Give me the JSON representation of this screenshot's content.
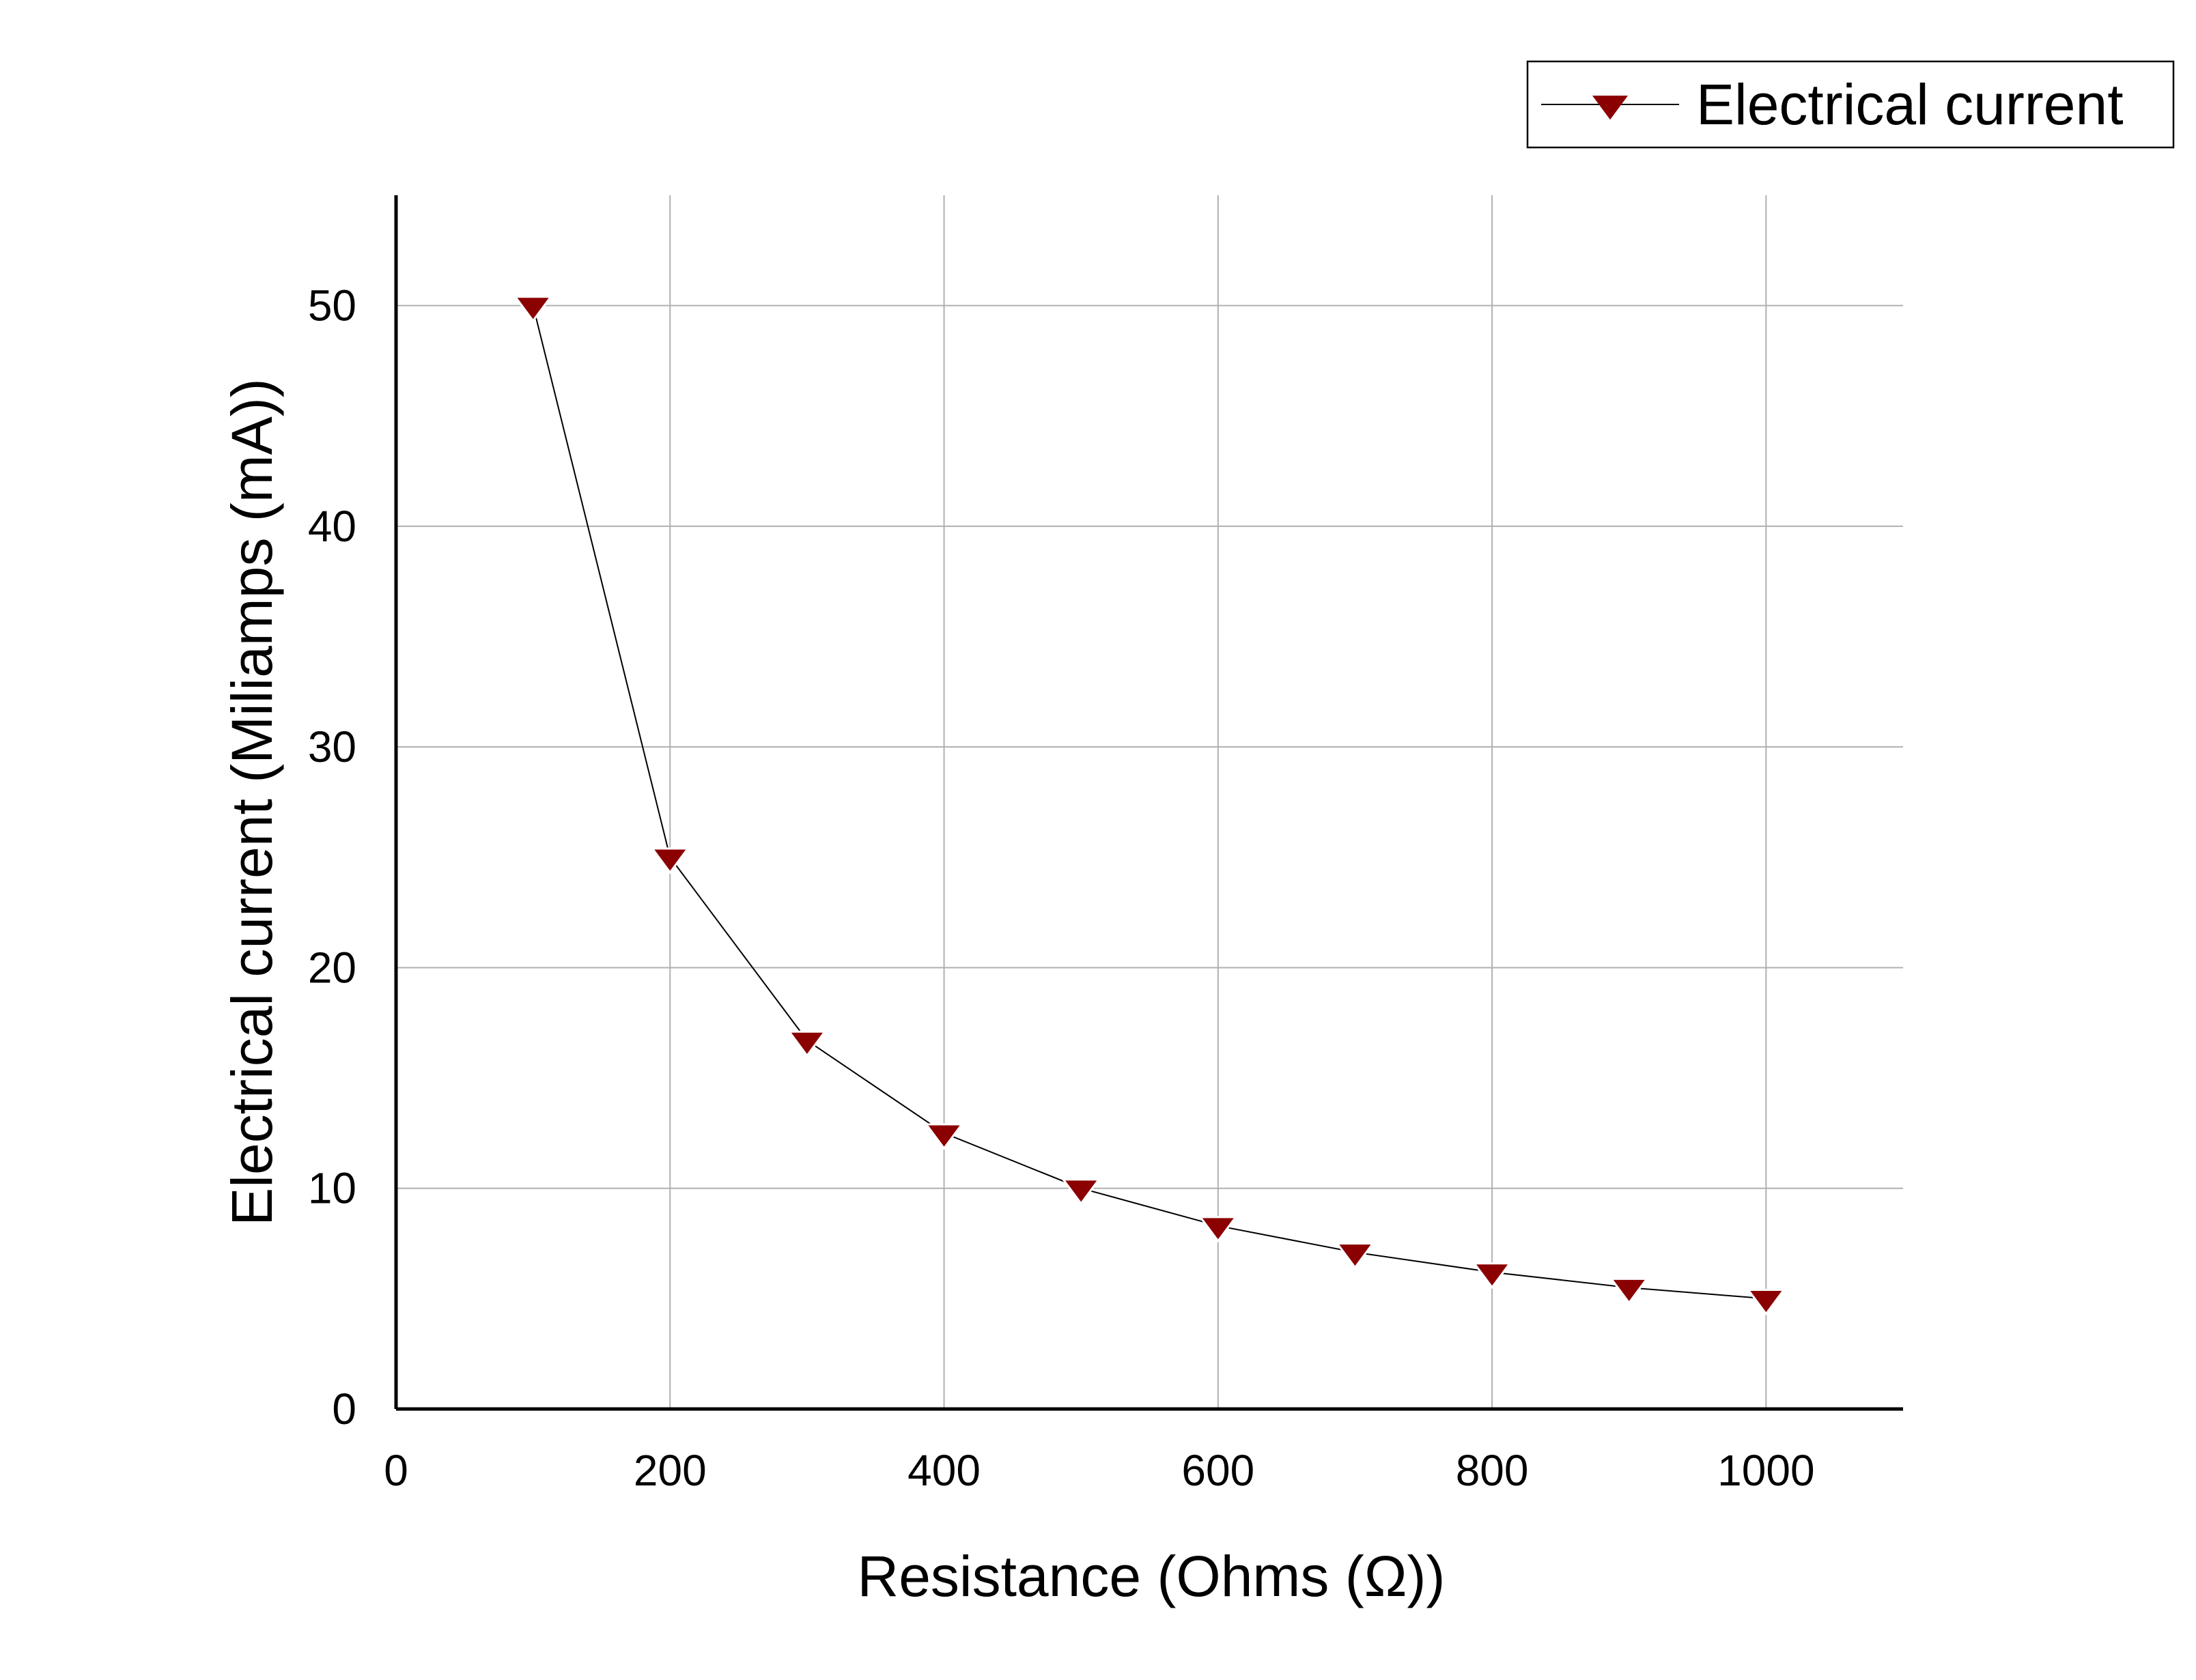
{
  "chart_data": {
    "type": "line",
    "title": "",
    "xlabel": "Resistance (Ohms (Ω))",
    "ylabel": "Electrical current (Miliamps (mA))",
    "xlim": [
      0,
      1100
    ],
    "ylim": [
      0,
      55
    ],
    "x_ticks": [
      0,
      200,
      400,
      600,
      800,
      1000
    ],
    "y_ticks": [
      0,
      10,
      20,
      30,
      40,
      50
    ],
    "grid": true,
    "legend_position": "top-right",
    "series": [
      {
        "name": "Electrical current",
        "color": "#8b0000",
        "line_color": "#000000",
        "marker": "triangle-down",
        "x": [
          100,
          200,
          300,
          400,
          500,
          600,
          700,
          800,
          900,
          1000
        ],
        "y": [
          50,
          25,
          16.7,
          12.5,
          10,
          8.3,
          7.1,
          6.2,
          5.5,
          5
        ]
      }
    ]
  }
}
